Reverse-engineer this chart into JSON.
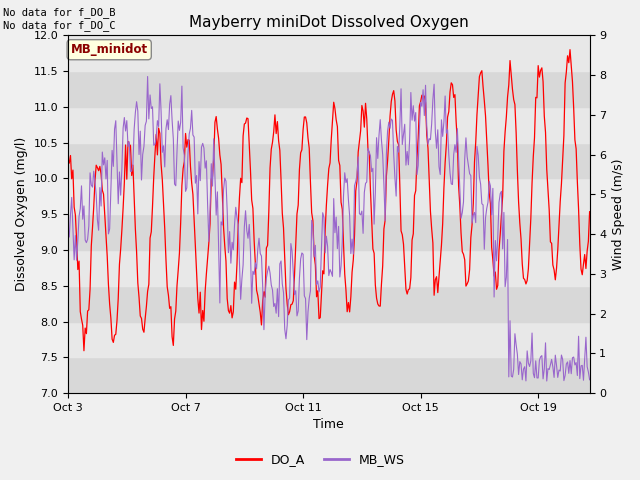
{
  "title": "Mayberry miniDot Dissolved Oxygen",
  "xlabel": "Time",
  "ylabel_left": "Dissolved Oxygen (mg/l)",
  "ylabel_right": "Wind Speed (m/s)",
  "annotation_lines": [
    "No data for f_DO_B",
    "No data for f_DO_C"
  ],
  "legend_label": "MB_minidot",
  "series_labels": [
    "DO_A",
    "MB_WS"
  ],
  "do_color": "#ff0000",
  "ws_color": "#9966cc",
  "ylim_left": [
    7.0,
    12.0
  ],
  "ylim_right": [
    0.0,
    9.0
  ],
  "xtick_labels": [
    "Oct 3",
    "Oct 7",
    "Oct 11",
    "Oct 15",
    "Oct 19"
  ],
  "fig_bg": "#f0f0f0",
  "plot_bg": "#f0f0f0",
  "band_light": "#e8e8e8",
  "band_dark": "#d8d8d8",
  "figsize": [
    6.4,
    4.8
  ],
  "dpi": 100
}
